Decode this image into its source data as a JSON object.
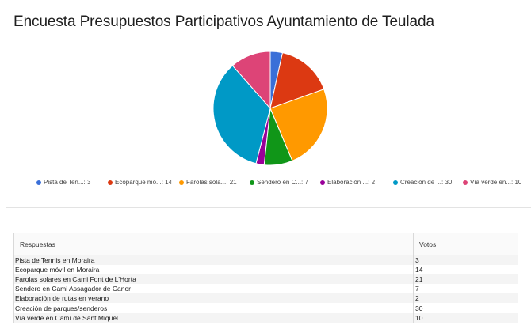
{
  "page": {
    "title": "Encuesta Presupuestos Participativos Ayuntamiento de Teulada"
  },
  "legend": [
    {
      "label": "Pista de Ten...: 3",
      "color": "#3a6fd8"
    },
    {
      "label": "Ecoparque mó...: 14",
      "color": "#dc3912"
    },
    {
      "label": "Farolas sola...: 21",
      "color": "#ff9900"
    },
    {
      "label": "Sendero en C...: 7",
      "color": "#109618"
    },
    {
      "label": "Elaboración ...: 2",
      "color": "#990099"
    },
    {
      "label": "Creación de ...: 30",
      "color": "#0099c6"
    },
    {
      "label": "Vía verde en...: 10",
      "color": "#dd4477"
    }
  ],
  "table": {
    "headers": {
      "respuestas": "Respuestas",
      "votos": "Votos"
    },
    "rows": [
      {
        "respuesta": "Pista de Tennis en Moraira",
        "votos": "3"
      },
      {
        "respuesta": "Ecoparque móvil en Moraira",
        "votos": "14"
      },
      {
        "respuesta": "Farolas solares en Cami Font de L'Horta",
        "votos": "21"
      },
      {
        "respuesta": "Sendero en Cami Assagador de Canor",
        "votos": "7"
      },
      {
        "respuesta": "Elaboración de rutas en verano",
        "votos": "2"
      },
      {
        "respuesta": "Creación de parques/senderos",
        "votos": "30"
      },
      {
        "respuesta": "Vía verde en Camí de Sant Miquel",
        "votos": "10"
      }
    ]
  },
  "chart_data": {
    "type": "pie",
    "title": "",
    "categories": [
      "Pista de Ten...",
      "Ecoparque mó...",
      "Farolas sola...",
      "Sendero en C...",
      "Elaboración ...",
      "Creación de ...",
      "Vía verde en..."
    ],
    "values": [
      3,
      14,
      21,
      7,
      2,
      30,
      10
    ],
    "colors": [
      "#3a6fd8",
      "#dc3912",
      "#ff9900",
      "#109618",
      "#990099",
      "#0099c6",
      "#dd4477"
    ],
    "legend_position": "bottom"
  }
}
